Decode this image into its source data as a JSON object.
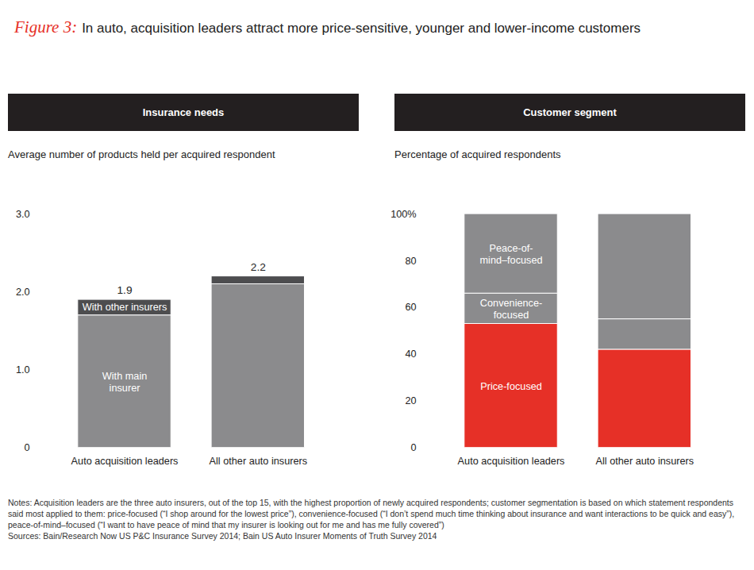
{
  "title_prefix": "Figure 3:",
  "title": "In auto, acquisition leaders attract more price-sensitive, younger and lower-income customers",
  "notes": "Notes: Acquisition leaders are the three auto insurers, out of the top 15, with the highest proportion of newly acquired respondents; customer segmentation is based on which statement respondents said most applied to them: price-focused (“I shop around for the lowest price”), convenience-focused (“I don’t spend much time thinking about insurance and want interactions to be quick and easy”), peace-of-mind–focused (“I want to have peace of mind that my insurer is looking out for me and has me fully covered”)",
  "sources": "Sources: Bain/Research Now US P&C Insurance Survey 2014; Bain US Auto Insurer Moments of Truth Survey 2014",
  "chart_data": [
    {
      "type": "bar",
      "stacked": true,
      "grid": false,
      "title": "Insurance needs",
      "subtitle": "Average number of products held per acquired respondent",
      "categories": [
        "Auto acquisition leaders",
        "All other auto insurers"
      ],
      "series": [
        {
          "name": "With main insurer",
          "color": "#8b8b8d",
          "values": [
            1.7,
            2.1
          ]
        },
        {
          "name": "With other insurers",
          "color": "#4d4d4f",
          "values": [
            0.2,
            0.1
          ]
        }
      ],
      "totals": [
        1.9,
        2.2
      ],
      "ylim": [
        0,
        3
      ],
      "yticks": [
        0,
        {
          "value": 1,
          "label": "1.0"
        },
        {
          "value": 2,
          "label": "2.0"
        },
        {
          "value": 3,
          "label": "3.0"
        }
      ]
    },
    {
      "type": "bar",
      "stacked": true,
      "grid": false,
      "title": "Customer segment",
      "subtitle": "Percentage of acquired respondents",
      "categories": [
        "Auto acquisition leaders",
        "All other auto insurers"
      ],
      "series": [
        {
          "name": "Price-focused",
          "color": "#e63027",
          "values": [
            53,
            42
          ]
        },
        {
          "name": "Convenience-focused",
          "color": "#8b8b8d",
          "values": [
            13,
            13
          ]
        },
        {
          "name": "Peace-of-mind–focused",
          "color": "#8b8b8d",
          "values": [
            34,
            45
          ]
        }
      ],
      "ylim": [
        0,
        100
      ],
      "yticks": [
        0,
        20,
        40,
        60,
        80,
        {
          "value": 100,
          "label": "100%"
        }
      ]
    }
  ]
}
